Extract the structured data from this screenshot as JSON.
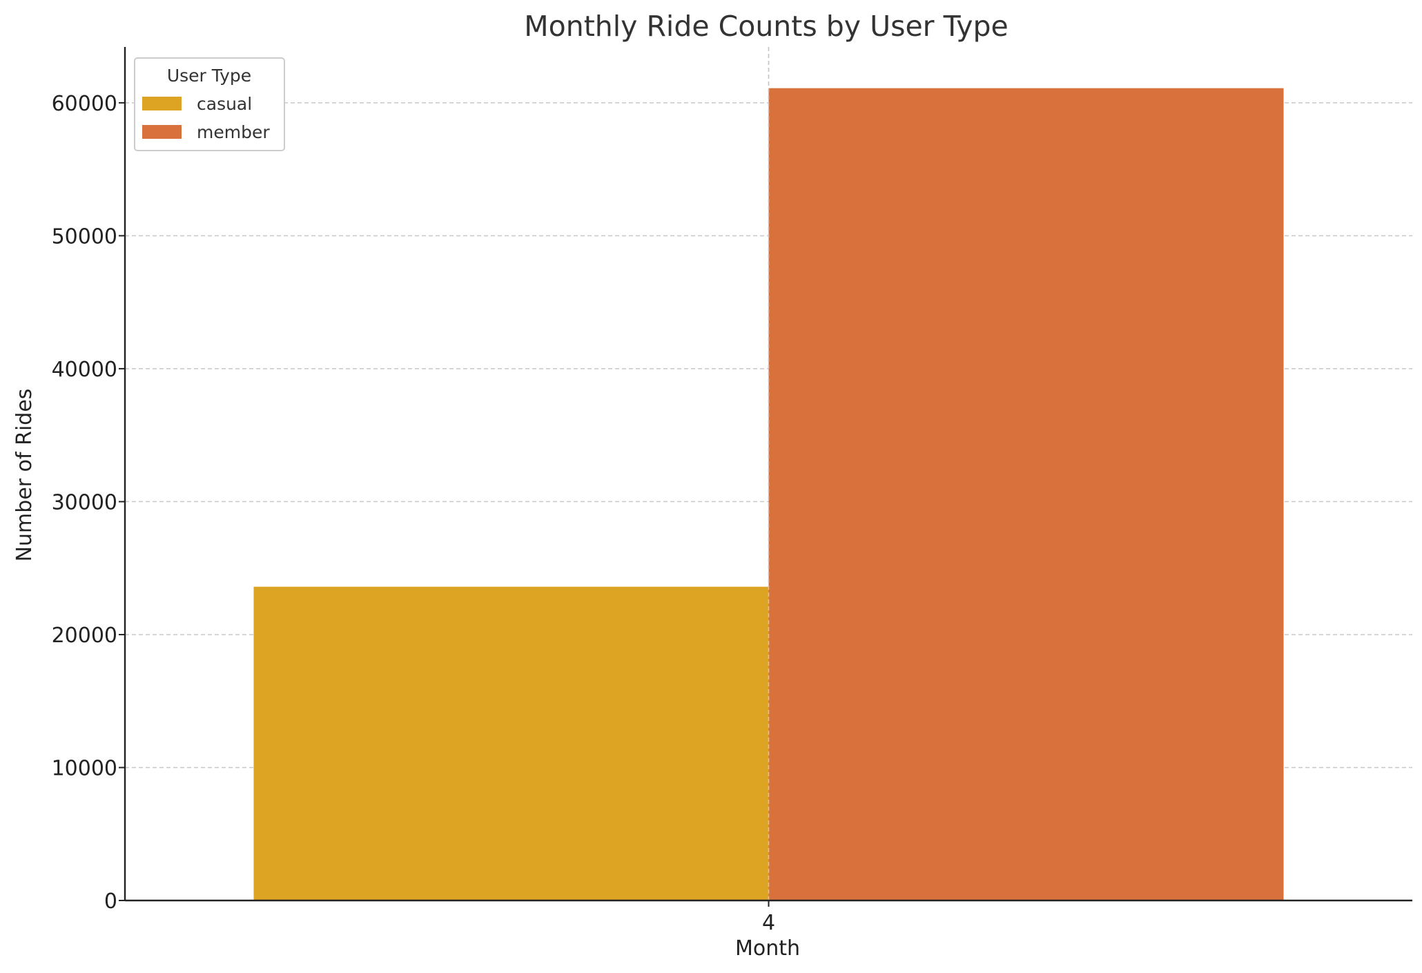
{
  "chart_data": {
    "type": "bar",
    "title": "Monthly Ride Counts by User Type",
    "xlabel": "Month",
    "ylabel": "Number of Rides",
    "categories": [
      "4"
    ],
    "series": [
      {
        "name": "casual",
        "values": [
          23600
        ],
        "color": "#DDA322"
      },
      {
        "name": "member",
        "values": [
          61100
        ],
        "color": "#D9713C"
      }
    ],
    "ylim": [
      0,
      64200
    ],
    "yticks": [
      0,
      10000,
      20000,
      30000,
      40000,
      50000,
      60000
    ],
    "ytick_labels": [
      "0",
      "10000",
      "20000",
      "30000",
      "40000",
      "50000",
      "60000"
    ],
    "grid": true,
    "grid_style": "dashed",
    "legend": {
      "title": "User Type",
      "placement": "top-left"
    }
  }
}
